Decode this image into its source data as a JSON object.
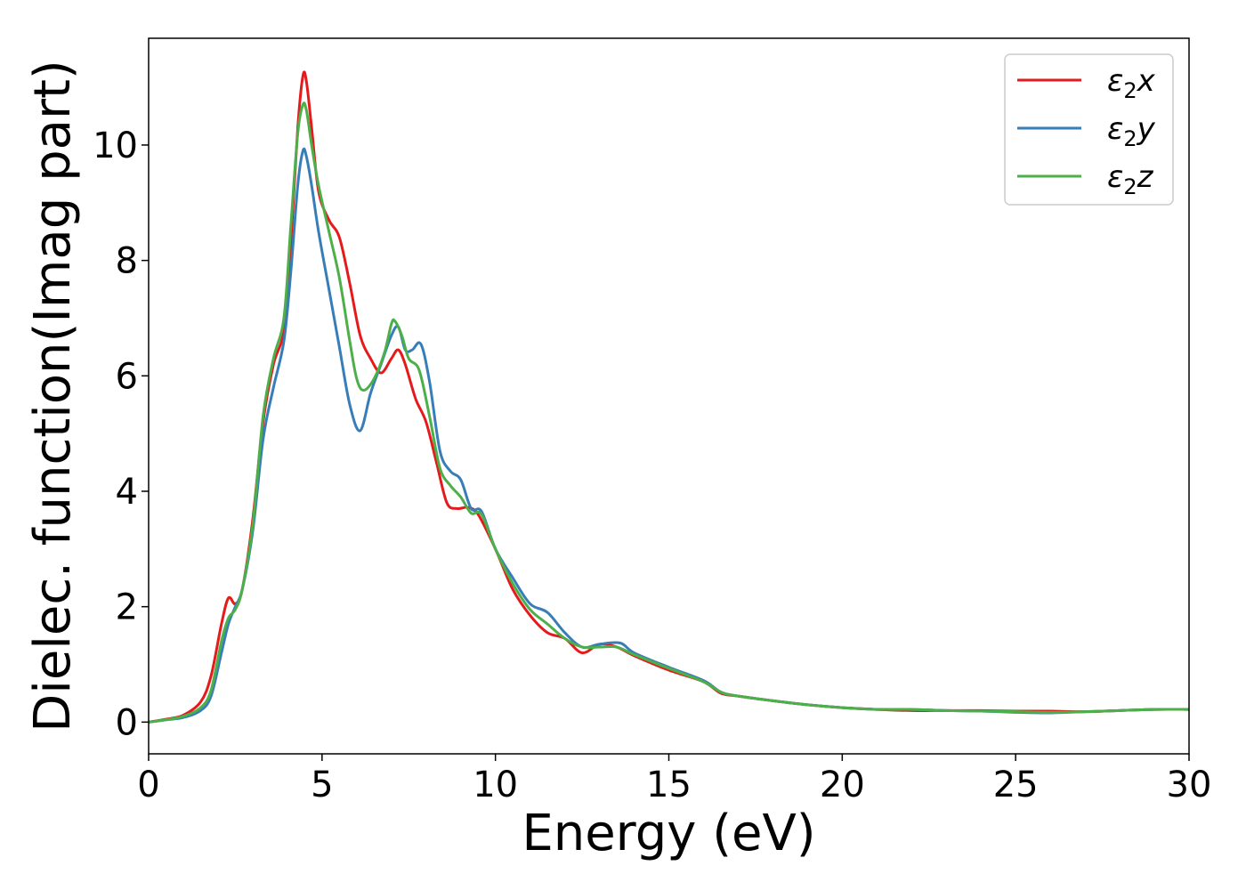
{
  "chart_data": {
    "type": "line",
    "title": "",
    "xlabel": "Energy (eV)",
    "ylabel": "Dielec. function(Imag part)",
    "xlim": [
      0,
      30
    ],
    "ylim": [
      -0.55,
      11.85
    ],
    "xticks": [
      0,
      5,
      10,
      15,
      20,
      25,
      30
    ],
    "yticks": [
      0,
      2,
      4,
      6,
      8,
      10
    ],
    "grid": false,
    "legend_position": "top-right",
    "series": [
      {
        "name": "ε₂x",
        "label_base": "ε",
        "label_sub": "2",
        "label_var": "x",
        "color": "#e41a1c",
        "x": [
          0,
          0.5,
          1.0,
          1.5,
          1.8,
          2.1,
          2.3,
          2.5,
          2.7,
          3.0,
          3.3,
          3.6,
          3.9,
          4.1,
          4.3,
          4.45,
          4.55,
          4.7,
          4.9,
          5.2,
          5.5,
          5.8,
          6.1,
          6.4,
          6.7,
          7.0,
          7.2,
          7.4,
          7.7,
          8.0,
          8.3,
          8.6,
          8.9,
          9.2,
          9.5,
          10.0,
          10.5,
          11.0,
          11.5,
          12.0,
          12.5,
          13.0,
          13.5,
          14.0,
          15.0,
          16.0,
          16.5,
          17.0,
          18.0,
          19.0,
          20.0,
          21.0,
          22.0,
          23.0,
          24.0,
          25.0,
          26.0,
          27.0,
          28.0,
          29.0,
          30.0
        ],
        "y": [
          0.0,
          0.05,
          0.12,
          0.35,
          0.8,
          1.7,
          2.15,
          2.05,
          2.3,
          3.5,
          5.2,
          6.2,
          6.8,
          8.3,
          10.3,
          11.2,
          11.1,
          10.3,
          9.2,
          8.7,
          8.4,
          7.6,
          6.7,
          6.3,
          6.05,
          6.3,
          6.45,
          6.2,
          5.6,
          5.2,
          4.5,
          3.8,
          3.7,
          3.72,
          3.6,
          3.0,
          2.3,
          1.85,
          1.55,
          1.45,
          1.2,
          1.35,
          1.3,
          1.15,
          0.9,
          0.7,
          0.5,
          0.45,
          0.37,
          0.3,
          0.25,
          0.22,
          0.2,
          0.2,
          0.2,
          0.19,
          0.19,
          0.18,
          0.2,
          0.22,
          0.22
        ]
      },
      {
        "name": "ε₂y",
        "label_base": "ε",
        "label_sub": "2",
        "label_var": "y",
        "color": "#377eb8",
        "x": [
          0,
          0.5,
          1.0,
          1.5,
          1.8,
          2.1,
          2.3,
          2.5,
          2.7,
          3.0,
          3.3,
          3.6,
          3.9,
          4.1,
          4.3,
          4.45,
          4.55,
          4.7,
          4.9,
          5.2,
          5.5,
          5.8,
          6.1,
          6.4,
          6.7,
          7.0,
          7.2,
          7.4,
          7.6,
          7.85,
          8.1,
          8.4,
          8.7,
          9.0,
          9.3,
          9.6,
          10.0,
          10.5,
          11.0,
          11.5,
          12.0,
          12.5,
          13.0,
          13.6,
          14.0,
          15.0,
          16.0,
          16.5,
          17.0,
          18.0,
          19.0,
          20.0,
          21.0,
          22.0,
          23.0,
          24.0,
          25.0,
          26.0,
          27.0,
          28.0,
          29.0,
          30.0
        ],
        "y": [
          0.0,
          0.04,
          0.08,
          0.2,
          0.45,
          1.2,
          1.7,
          2.0,
          2.3,
          3.3,
          4.9,
          5.8,
          6.6,
          7.8,
          9.3,
          9.9,
          9.8,
          9.3,
          8.5,
          7.5,
          6.5,
          5.5,
          5.05,
          5.7,
          6.2,
          6.7,
          6.85,
          6.45,
          6.45,
          6.55,
          5.9,
          4.7,
          4.35,
          4.2,
          3.7,
          3.65,
          3.0,
          2.5,
          2.05,
          1.9,
          1.55,
          1.3,
          1.35,
          1.37,
          1.2,
          0.95,
          0.72,
          0.52,
          0.45,
          0.37,
          0.3,
          0.25,
          0.22,
          0.22,
          0.2,
          0.19,
          0.17,
          0.16,
          0.18,
          0.2,
          0.22,
          0.22
        ]
      },
      {
        "name": "ε₂z",
        "label_base": "ε",
        "label_sub": "2",
        "label_var": "z",
        "color": "#4daf4a",
        "x": [
          0,
          0.5,
          1.0,
          1.5,
          1.8,
          2.1,
          2.3,
          2.5,
          2.7,
          3.0,
          3.3,
          3.6,
          3.9,
          4.1,
          4.3,
          4.45,
          4.55,
          4.7,
          4.9,
          5.2,
          5.5,
          5.8,
          6.0,
          6.2,
          6.5,
          6.8,
          7.0,
          7.1,
          7.3,
          7.5,
          7.8,
          8.1,
          8.4,
          8.7,
          9.0,
          9.3,
          9.6,
          10.0,
          10.5,
          11.0,
          11.5,
          12.0,
          12.5,
          13.0,
          13.5,
          14.0,
          15.0,
          16.0,
          16.5,
          17.0,
          18.0,
          19.0,
          20.0,
          21.0,
          22.0,
          23.0,
          24.0,
          25.0,
          26.0,
          27.0,
          28.0,
          29.0,
          30.0
        ],
        "y": [
          0.0,
          0.04,
          0.1,
          0.25,
          0.55,
          1.4,
          1.8,
          1.95,
          2.3,
          3.4,
          5.3,
          6.3,
          7.0,
          8.6,
          10.2,
          10.7,
          10.6,
          10.0,
          9.3,
          8.5,
          7.7,
          6.6,
          5.95,
          5.75,
          5.95,
          6.4,
          6.9,
          6.95,
          6.7,
          6.3,
          6.1,
          5.3,
          4.4,
          4.1,
          3.9,
          3.62,
          3.6,
          3.0,
          2.4,
          1.95,
          1.7,
          1.45,
          1.3,
          1.3,
          1.3,
          1.17,
          0.93,
          0.7,
          0.52,
          0.45,
          0.37,
          0.3,
          0.25,
          0.22,
          0.22,
          0.2,
          0.19,
          0.18,
          0.17,
          0.18,
          0.2,
          0.22,
          0.22
        ]
      }
    ]
  }
}
